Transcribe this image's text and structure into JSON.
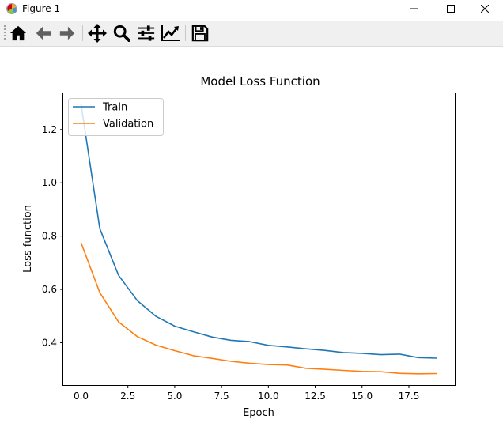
{
  "window": {
    "title": "Figure 1",
    "app_icon": "matplotlib-icon",
    "controls": [
      "minimize-icon",
      "maximize-icon",
      "close-icon"
    ]
  },
  "toolbar": {
    "buttons": [
      {
        "name": "home",
        "icon": "home-icon"
      },
      {
        "name": "back",
        "icon": "arrow-left-icon"
      },
      {
        "name": "forward",
        "icon": "arrow-right-icon"
      },
      {
        "name": "pan",
        "icon": "move-icon"
      },
      {
        "name": "zoom",
        "icon": "magnifier-icon"
      },
      {
        "name": "configure-subplots",
        "icon": "sliders-icon"
      },
      {
        "name": "edit-axis",
        "icon": "chart-line-icon"
      },
      {
        "name": "save",
        "icon": "floppy-disk-icon"
      }
    ]
  },
  "chart_data": {
    "type": "line",
    "title": "Model Loss Function",
    "xlabel": "Epoch",
    "ylabel": "Loss function",
    "x": [
      0,
      1,
      2,
      3,
      4,
      5,
      6,
      7,
      8,
      9,
      10,
      11,
      12,
      13,
      14,
      15,
      16,
      17,
      18,
      19
    ],
    "series": [
      {
        "name": "Train",
        "color": "#1f77b4",
        "values": [
          1.295,
          0.828,
          0.653,
          0.558,
          0.499,
          0.462,
          0.441,
          0.421,
          0.409,
          0.404,
          0.39,
          0.384,
          0.377,
          0.371,
          0.363,
          0.36,
          0.355,
          0.357,
          0.344,
          0.342
        ]
      },
      {
        "name": "Validation",
        "color": "#ff7f0e",
        "values": [
          0.775,
          0.588,
          0.478,
          0.423,
          0.391,
          0.37,
          0.351,
          0.341,
          0.33,
          0.323,
          0.318,
          0.316,
          0.304,
          0.3,
          0.296,
          0.292,
          0.291,
          0.285,
          0.283,
          0.284
        ]
      }
    ],
    "xlim": [
      -0.95,
      19.95
    ],
    "ylim": [
      0.241,
      1.336
    ],
    "xticks": [
      0.0,
      2.5,
      5.0,
      7.5,
      10.0,
      12.5,
      15.0,
      17.5
    ],
    "xtick_labels": [
      "0.0",
      "2.5",
      "5.0",
      "7.5",
      "10.0",
      "12.5",
      "15.0",
      "17.5"
    ],
    "yticks": [
      0.4,
      0.6,
      0.8,
      1.0,
      1.2
    ],
    "ytick_labels": [
      "0.4",
      "0.6",
      "0.8",
      "1.0",
      "1.2"
    ],
    "grid": false,
    "legend": "upper-left"
  }
}
